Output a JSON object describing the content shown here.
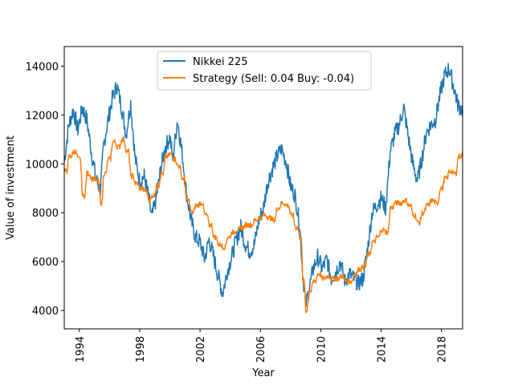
{
  "chart_data": {
    "type": "line",
    "xlabel": "Year",
    "ylabel": "Value of investment",
    "xlim": [
      1993.0,
      2019.4
    ],
    "ylim": [
      3250,
      14800
    ],
    "xticks": [
      1994,
      1998,
      2002,
      2006,
      2010,
      2014,
      2018
    ],
    "xtick_labels": [
      "1994",
      "1998",
      "2002",
      "2006",
      "2010",
      "2014",
      "2018"
    ],
    "yticks": [
      4000,
      6000,
      8000,
      10000,
      12000,
      14000
    ],
    "ytick_labels": [
      "4000",
      "6000",
      "8000",
      "10000",
      "12000",
      "14000"
    ],
    "grid": false,
    "legend_position": "top-center",
    "series": [
      {
        "name": "Nikkei 225",
        "color": "#1f77b4",
        "x": [
          1993.0,
          1993.3,
          1993.6,
          1993.9,
          1994.2,
          1994.5,
          1994.8,
          1995.1,
          1995.4,
          1995.6,
          1995.9,
          1996.2,
          1996.5,
          1996.8,
          1997.1,
          1997.4,
          1997.7,
          1998.0,
          1998.3,
          1998.6,
          1998.8,
          1999.1,
          1999.4,
          1999.7,
          2000.0,
          2000.2,
          2000.5,
          2000.8,
          2001.1,
          2001.4,
          2001.7,
          2002.0,
          2002.3,
          2002.6,
          2002.9,
          2003.2,
          2003.5,
          2003.8,
          2004.1,
          2004.4,
          2004.7,
          2005.0,
          2005.3,
          2005.6,
          2005.9,
          2006.2,
          2006.5,
          2006.8,
          2007.1,
          2007.4,
          2007.7,
          2008.0,
          2008.3,
          2008.6,
          2008.8,
          2009.0,
          2009.2,
          2009.5,
          2009.8,
          2010.1,
          2010.4,
          2010.7,
          2011.0,
          2011.3,
          2011.6,
          2011.9,
          2012.2,
          2012.5,
          2012.8,
          2013.1,
          2013.4,
          2013.7,
          2014.0,
          2014.3,
          2014.6,
          2014.9,
          2015.2,
          2015.5,
          2015.8,
          2016.1,
          2016.4,
          2016.7,
          2017.0,
          2017.3,
          2017.6,
          2017.9,
          2018.2,
          2018.5,
          2018.8,
          2019.1,
          2019.4
        ],
        "values": [
          10100,
          11600,
          12200,
          11400,
          12300,
          11800,
          10500,
          9400,
          8900,
          10700,
          11800,
          12700,
          13200,
          12300,
          11200,
          12500,
          10200,
          9300,
          9500,
          8600,
          7800,
          8600,
          9800,
          10700,
          11100,
          10200,
          11800,
          10500,
          8800,
          7700,
          7000,
          6800,
          6100,
          6900,
          6200,
          5400,
          4700,
          5600,
          6200,
          6900,
          7400,
          6700,
          6400,
          6700,
          7700,
          8200,
          9300,
          9800,
          10300,
          10600,
          10100,
          9100,
          8700,
          7500,
          5600,
          4200,
          4800,
          5700,
          6200,
          5700,
          6100,
          5300,
          5600,
          6000,
          5200,
          5500,
          5300,
          5100,
          5300,
          6500,
          8000,
          8300,
          8600,
          8200,
          10500,
          11200,
          11600,
          12300,
          11100,
          10000,
          9300,
          10200,
          11300,
          11600,
          11800,
          12800,
          13600,
          13900,
          13200,
          12400,
          12200
        ]
      },
      {
        "name": "Strategy (Sell: 0.04 Buy: -0.04)",
        "color": "#ff7f0e",
        "x": [
          1993.0,
          1993.3,
          1993.6,
          1993.9,
          1994.2,
          1994.5,
          1994.8,
          1995.1,
          1995.4,
          1995.6,
          1995.9,
          1996.2,
          1996.5,
          1996.8,
          1997.1,
          1997.4,
          1997.7,
          1998.0,
          1998.3,
          1998.6,
          1998.8,
          1999.1,
          1999.4,
          1999.7,
          2000.0,
          2000.2,
          2000.5,
          2000.8,
          2001.1,
          2001.4,
          2001.7,
          2002.0,
          2002.3,
          2002.6,
          2002.9,
          2003.2,
          2003.5,
          2003.8,
          2004.1,
          2004.4,
          2004.7,
          2005.0,
          2005.3,
          2005.6,
          2005.9,
          2006.2,
          2006.5,
          2006.8,
          2007.1,
          2007.4,
          2007.7,
          2008.0,
          2008.3,
          2008.6,
          2008.8,
          2009.0,
          2009.2,
          2009.5,
          2009.8,
          2010.1,
          2010.4,
          2010.7,
          2011.0,
          2011.3,
          2011.6,
          2011.9,
          2012.2,
          2012.5,
          2012.8,
          2013.1,
          2013.4,
          2013.7,
          2014.0,
          2014.3,
          2014.6,
          2014.9,
          2015.2,
          2015.5,
          2015.8,
          2016.1,
          2016.4,
          2016.7,
          2017.0,
          2017.3,
          2017.6,
          2017.9,
          2018.2,
          2018.5,
          2018.8,
          2019.1,
          2019.4
        ],
        "values": [
          9700,
          10300,
          10500,
          10200,
          8700,
          9600,
          9400,
          9300,
          8400,
          9600,
          10200,
          10900,
          10700,
          11000,
          10500,
          9500,
          9200,
          9000,
          8900,
          8500,
          8700,
          9100,
          9600,
          10300,
          10400,
          10200,
          9900,
          9400,
          8500,
          8000,
          8300,
          8400,
          7900,
          7500,
          7000,
          6700,
          6600,
          7000,
          7200,
          7300,
          7400,
          7500,
          7500,
          7700,
          7800,
          7900,
          7800,
          7700,
          8200,
          8400,
          8300,
          7900,
          7400,
          7000,
          5200,
          4000,
          4800,
          5200,
          5500,
          5300,
          5400,
          5300,
          5300,
          5400,
          5200,
          5200,
          5500,
          5700,
          5800,
          6300,
          6800,
          7000,
          7300,
          7200,
          8200,
          8400,
          8400,
          8500,
          8300,
          7900,
          7600,
          8000,
          8300,
          8500,
          8400,
          9000,
          9400,
          9700,
          9600,
          10300,
          10400
        ]
      }
    ]
  }
}
